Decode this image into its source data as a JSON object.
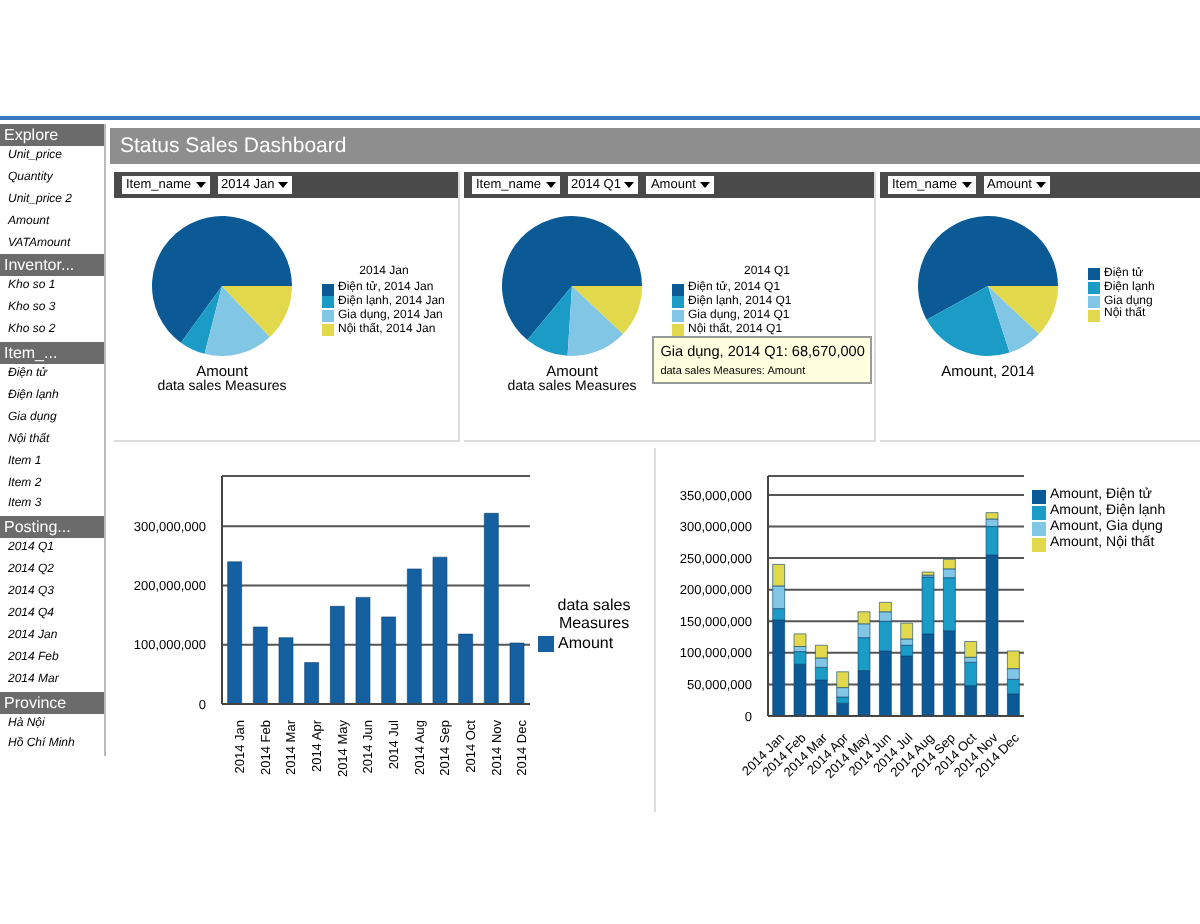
{
  "chart_data": [
    {
      "type": "other",
      "title": "Explore",
      "annotations": [
        "Unit_price",
        "Quantity",
        "Unit_price 2",
        "Amount",
        "VATAmount"
      ]
    },
    {
      "type": "other",
      "title": "Inventor...",
      "annotations": [
        "Kho so 1",
        "Kho so 3",
        "Kho so 2"
      ]
    },
    {
      "type": "other",
      "title": "Item_...",
      "annotations": [
        "Điện tử",
        "Điện lạnh",
        "Gia dụng",
        "Nội thất",
        "Item 1",
        "Item 2",
        "Item 3"
      ]
    },
    {
      "type": "other",
      "title": "Posting...",
      "annotations": [
        "2014 Q1",
        "2014 Q2",
        "2014 Q3",
        "2014 Q4",
        "2014 Jan",
        "2014 Feb",
        "2014 Mar"
      ]
    },
    {
      "type": "other",
      "title": "Province",
      "annotations": [
        "Hà Nội",
        "Hồ Chí Minh"
      ]
    },
    {
      "type": "other",
      "title": "Status Sales Dashboard"
    },
    {
      "type": "pie",
      "legend_title": "2014 Jan",
      "xlabel": "Amount",
      "subtitle": "data sales Measures",
      "legend": "right",
      "annotations": [
        "Item_name",
        "2014 Jan"
      ],
      "categories": [
        "Điện tử, 2014 Jan",
        "Điện lạnh, 2014 Jan",
        "Gia dụng, 2014 Jan",
        "Nội thất, 2014 Jan"
      ],
      "values": [
        65,
        6,
        16,
        13
      ],
      "colors": [
        "#0b5a96",
        "#1a9cc6",
        "#82c6e6",
        "#e2d84c"
      ]
    },
    {
      "type": "pie",
      "legend_title": "2014 Q1",
      "xlabel": "Amount",
      "subtitle": "data sales Measures",
      "legend": "right",
      "annotations": [
        "Item_name",
        "2014 Q1",
        "Amount",
        {
          "text": "Gia dụng, 2014 Q1: 68,670,000",
          "x": "Gia dụng, 2014 Q1"
        },
        {
          "text": "data sales Measures: Amount",
          "x": "Gia dụng, 2014 Q1"
        }
      ],
      "categories": [
        "Điện tử, 2014 Q1",
        "Điện lạnh, 2014 Q1",
        "Gia dụng, 2014 Q1",
        "Nội thất, 2014 Q1"
      ],
      "values": [
        64,
        10,
        14,
        12
      ],
      "colors": [
        "#0b5a96",
        "#1a9cc6",
        "#82c6e6",
        "#e2d84c"
      ]
    },
    {
      "type": "pie",
      "xlabel": "Amount, 2014",
      "legend": "right",
      "annotations": [
        "Item_name",
        "Amount"
      ],
      "categories": [
        "Điện tử",
        "Điện lạnh",
        "Gia dụng",
        "Nội thất"
      ],
      "values": [
        58,
        22,
        8,
        12
      ],
      "colors": [
        "#0b5a96",
        "#1a9cc6",
        "#82c6e6",
        "#e2d84c"
      ]
    },
    {
      "type": "bar",
      "legend_title": "data sales Measures",
      "legend": "right",
      "grid": "y",
      "categories": [
        "2014 Jan",
        "2014 Feb",
        "2014 Mar",
        "2014 Apr",
        "2014 May",
        "2014 Jun",
        "2014 Jul",
        "2014 Aug",
        "2014 Sep",
        "2014 Oct",
        "2014 Nov",
        "2014 Dec"
      ],
      "series": [
        {
          "name": "Amount",
          "color": "#1560a0",
          "values": [
            240000000,
            130000000,
            112000000,
            70000000,
            165000000,
            180000000,
            147000000,
            228000000,
            248000000,
            118000000,
            322000000,
            103000000
          ]
        }
      ],
      "ylim": [
        0,
        385000000
      ],
      "yticks": [
        0,
        {
          "value": 100000000,
          "label": "100,000,000"
        },
        {
          "value": 200000000,
          "label": "200,000,000"
        },
        {
          "value": 300000000,
          "label": "300,000,000"
        }
      ]
    },
    {
      "type": "bar",
      "stacked": true,
      "legend": "top right",
      "grid": "y",
      "categories": [
        "2014 Jan",
        "2014 Feb",
        "2014 Mar",
        "2014 Apr",
        "2014 May",
        "2014 Jun",
        "2014 Jul",
        "2014 Aug",
        "2014 Sep",
        "2014 Oct",
        "2014 Nov",
        "2014 Dec"
      ],
      "series": [
        {
          "name": "Amount, Điện tử",
          "color": "#0b5a96",
          "values": [
            152000000,
            82000000,
            57000000,
            20000000,
            72000000,
            103000000,
            95000000,
            130000000,
            135000000,
            48000000,
            255000000,
            35000000
          ]
        },
        {
          "name": "Amount, Điện lạnh",
          "color": "#1a9cc6",
          "values": [
            18000000,
            20000000,
            20000000,
            10000000,
            52000000,
            47000000,
            17000000,
            90000000,
            84000000,
            37000000,
            45000000,
            23000000
          ]
        },
        {
          "name": "Amount, Gia dụng",
          "color": "#82c6e6",
          "values": [
            36000000,
            8000000,
            15000000,
            15000000,
            22000000,
            15000000,
            10000000,
            3000000,
            14000000,
            8000000,
            12000000,
            17000000
          ]
        },
        {
          "name": "Amount, Nội thất",
          "color": "#e2d84c",
          "values": [
            34000000,
            20000000,
            20000000,
            25000000,
            19000000,
            15000000,
            25000000,
            5000000,
            15000000,
            25000000,
            10000000,
            28000000
          ]
        }
      ],
      "ylim": [
        0,
        380000000
      ],
      "yticks": [
        0,
        {
          "value": 50000000,
          "label": "50,000,000"
        },
        {
          "value": 100000000,
          "label": "100,000,000"
        },
        {
          "value": 150000000,
          "label": "150,000,000"
        },
        {
          "value": 200000000,
          "label": "200,000,000"
        },
        {
          "value": 250000000,
          "label": "250,000,000"
        },
        {
          "value": 300000000,
          "label": "300,000,000"
        },
        {
          "value": 350000000,
          "label": "350,000,000"
        }
      ]
    }
  ]
}
